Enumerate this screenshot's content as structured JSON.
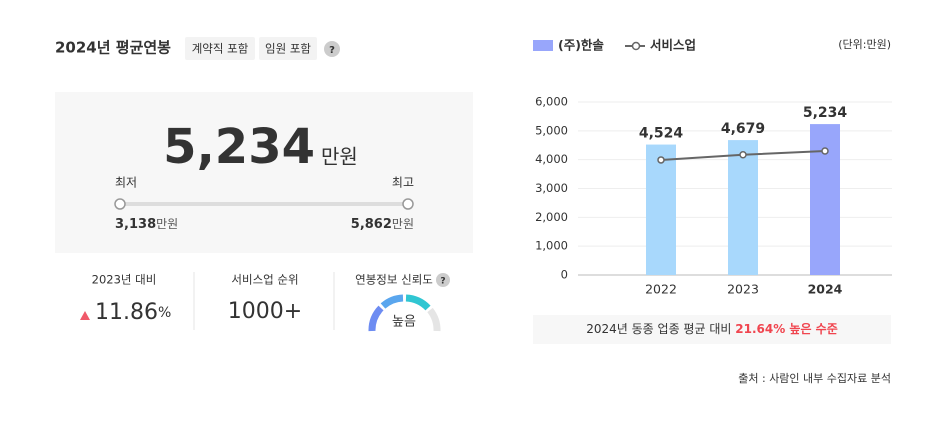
{
  "summary": {
    "title": "2024년 평균연봉",
    "tags": [
      "계약직 포함",
      "임원 포함"
    ],
    "salary": "5,234",
    "salary_unit": "만원",
    "min_label": "최저",
    "max_label": "최고",
    "min": "3,138",
    "max": "5,862",
    "range_unit": "만원"
  },
  "stats": [
    {
      "label": "2023년 대비",
      "value": "11.86",
      "unit": "%"
    },
    {
      "label": "서비스업 순위",
      "value": "1000+"
    },
    {
      "label": "연봉정보 신뢰도",
      "value": "높음"
    }
  ],
  "chart_data": {
    "type": "bar",
    "unit_note": "(단위:만원)",
    "categories": [
      "2022",
      "2023",
      "2024"
    ],
    "series": [
      {
        "name": "(주)한솔",
        "type": "bar",
        "color": "#98a6fb",
        "colors": [
          "#a8d8fc",
          "#a8d8fc",
          "#98a6fb"
        ],
        "values": [
          4524,
          4679,
          5234
        ],
        "value_labels": [
          "4,524",
          "4,679",
          "5,234"
        ]
      },
      {
        "name": "서비스업",
        "type": "line",
        "color": "#666666",
        "values": [
          3990,
          4170,
          4300
        ]
      }
    ],
    "ylim": [
      0,
      6000
    ],
    "yticks": [
      0,
      {
        "value": 1000,
        "label": "1,000"
      },
      {
        "value": 2000,
        "label": "2,000"
      },
      {
        "value": 3000,
        "label": "3,000"
      },
      {
        "value": 4000,
        "label": "4,000"
      },
      {
        "value": 5000,
        "label": "5,000"
      },
      {
        "value": 6000,
        "label": "6,000"
      }
    ],
    "grid": true,
    "note_prefix": "2024년 동종 업종 평균 대비",
    "note_highlight": "21.64% 높은 수준"
  },
  "source": "출처 : 사람인 내부 수집자료 분석"
}
